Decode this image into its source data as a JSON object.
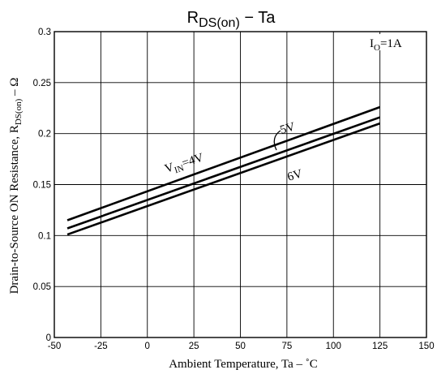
{
  "chart_data": {
    "type": "line",
    "title": {
      "main": "R",
      "sub": "DS(on)",
      "rest": "  −  Ta"
    },
    "xlabel": "Ambient Temperature, Ta  –  ˚C",
    "ylabel": {
      "main": "Drain-to-Source ON Resistance, R",
      "sub": "DS(on)",
      "rest": "  –  Ω"
    },
    "xlim": [
      -50,
      150
    ],
    "ylim": [
      0,
      0.3
    ],
    "xticks": [
      -50,
      -25,
      0,
      25,
      50,
      75,
      100,
      125,
      150
    ],
    "yticks": [
      0,
      0.05,
      0.1,
      0.15,
      0.2,
      0.25,
      0.3
    ],
    "xtick_labels": [
      "-50",
      "-25",
      "0",
      "25",
      "50",
      "75",
      "100",
      "125",
      "150"
    ],
    "ytick_labels": [
      "0",
      "0.05",
      "0.1",
      "0.15",
      "0.2",
      "0.25",
      "0.3"
    ],
    "grid": true,
    "condition": {
      "main": "I",
      "sub": "O",
      "rest": "=1A"
    },
    "series": [
      {
        "name": "4V",
        "x": [
          -43,
          125
        ],
        "y": [
          0.115,
          0.226
        ]
      },
      {
        "name": "5V",
        "x": [
          -43,
          125
        ],
        "y": [
          0.107,
          0.216
        ]
      },
      {
        "name": "6V",
        "x": [
          -43,
          125
        ],
        "y": [
          0.101,
          0.21
        ]
      }
    ],
    "labels": {
      "vin_prefix": "V",
      "vin_sub": "IN",
      "vin_value": "=4V",
      "v5": "5V",
      "v6": "6V"
    },
    "line_color": "#000000",
    "grid_color": "#000000"
  }
}
